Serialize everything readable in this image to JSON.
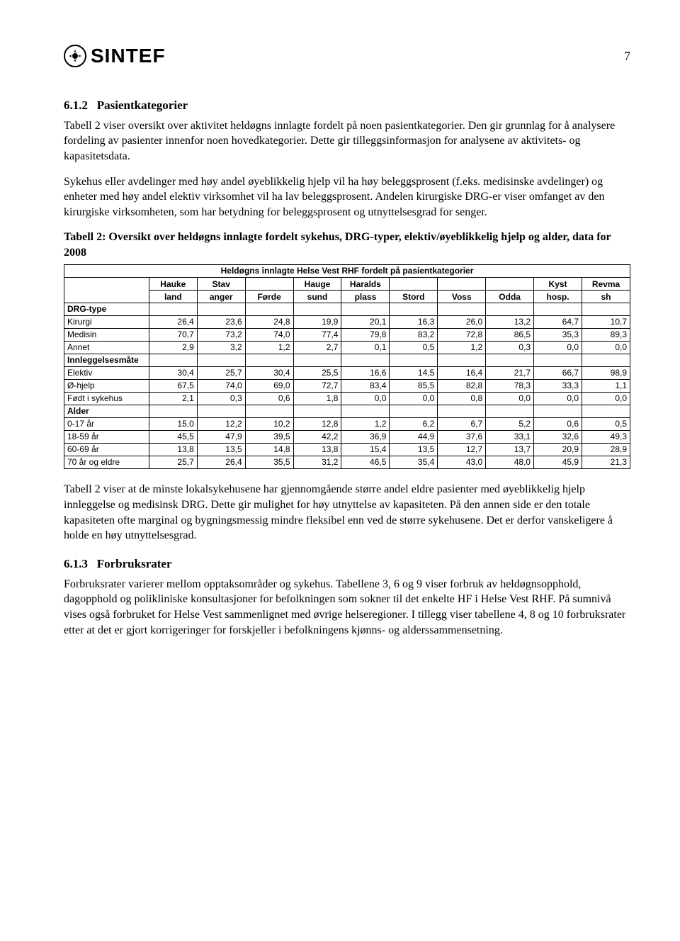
{
  "page": {
    "brand": "SINTEF",
    "logo_glyph": "❂",
    "page_number": "7"
  },
  "section1": {
    "number": "6.1.2",
    "title": "Pasientkategorier",
    "para1": "Tabell 2 viser oversikt over aktivitet heldøgns innlagte fordelt på noen pasientkategorier. Den gir grunnlag for å analysere fordeling av pasienter innenfor noen hovedkategorier. Dette gir tilleggsinformasjon for analysene av aktivitets- og kapasitetsdata.",
    "para2": "Sykehus eller avdelinger med høy andel øyeblikkelig hjelp vil ha høy beleggsprosent (f.eks. medisinske avdelinger) og enheter med høy andel elektiv virksomhet vil ha lav beleggsprosent. Andelen kirurgiske DRG-er viser omfanget av den kirurgiske virksomheten, som har betydning for beleggsprosent og utnyttelsesgrad for senger.",
    "table_caption": "Tabell 2: Oversikt over heldøgns innlagte fordelt sykehus, DRG-typer, elektiv/øyeblikkelig hjelp og alder, data for 2008"
  },
  "table2": {
    "supertitle": "Heldøgns innlagte Helse Vest RHF fordelt på pasientkategorier",
    "columns": [
      {
        "l1": "Hauke",
        "l2": "land"
      },
      {
        "l1": "Stav",
        "l2": "anger"
      },
      {
        "l1": "",
        "l2": "Førde"
      },
      {
        "l1": "Hauge",
        "l2": "sund"
      },
      {
        "l1": "Haralds",
        "l2": "plass"
      },
      {
        "l1": "",
        "l2": "Stord"
      },
      {
        "l1": "",
        "l2": "Voss"
      },
      {
        "l1": "",
        "l2": "Odda"
      },
      {
        "l1": "Kyst",
        "l2": "hosp."
      },
      {
        "l1": "Revma",
        "l2": "sh"
      }
    ],
    "groups": [
      {
        "name": "DRG-type",
        "rows": [
          {
            "label": "Kirurgi",
            "v": [
              "26,4",
              "23,6",
              "24,8",
              "19,9",
              "20,1",
              "16,3",
              "26,0",
              "13,2",
              "64,7",
              "10,7"
            ]
          },
          {
            "label": "Medisin",
            "v": [
              "70,7",
              "73,2",
              "74,0",
              "77,4",
              "79,8",
              "83,2",
              "72,8",
              "86,5",
              "35,3",
              "89,3"
            ]
          },
          {
            "label": "Annet",
            "v": [
              "2,9",
              "3,2",
              "1,2",
              "2,7",
              "0,1",
              "0,5",
              "1,2",
              "0,3",
              "0,0",
              "0,0"
            ]
          }
        ]
      },
      {
        "name": "Innleggelsesmåte",
        "rows": [
          {
            "label": "Elektiv",
            "v": [
              "30,4",
              "25,7",
              "30,4",
              "25,5",
              "16,6",
              "14,5",
              "16,4",
              "21,7",
              "66,7",
              "98,9"
            ]
          },
          {
            "label": "Ø-hjelp",
            "v": [
              "67,5",
              "74,0",
              "69,0",
              "72,7",
              "83,4",
              "85,5",
              "82,8",
              "78,3",
              "33,3",
              "1,1"
            ]
          },
          {
            "label": "Født i sykehus",
            "v": [
              "2,1",
              "0,3",
              "0,6",
              "1,8",
              "0,0",
              "0,0",
              "0,8",
              "0,0",
              "0,0",
              "0,0"
            ]
          }
        ]
      },
      {
        "name": "Alder",
        "rows": [
          {
            "label": "0-17 år",
            "v": [
              "15,0",
              "12,2",
              "10,2",
              "12,8",
              "1,2",
              "6,2",
              "6,7",
              "5,2",
              "0,6",
              "0,5"
            ]
          },
          {
            "label": "18-59 år",
            "v": [
              "45,5",
              "47,9",
              "39,5",
              "42,2",
              "36,9",
              "44,9",
              "37,6",
              "33,1",
              "32,6",
              "49,3"
            ]
          },
          {
            "label": "60-69 år",
            "v": [
              "13,8",
              "13,5",
              "14,8",
              "13,8",
              "15,4",
              "13,5",
              "12,7",
              "13,7",
              "20,9",
              "28,9"
            ]
          },
          {
            "label": "70 år og eldre",
            "v": [
              "25,7",
              "26,4",
              "35,5",
              "31,2",
              "46,5",
              "35,4",
              "43,0",
              "48,0",
              "45,9",
              "21,3"
            ]
          }
        ]
      }
    ]
  },
  "section1b": {
    "para3": "Tabell 2 viser at de minste lokalsykehusene har gjennomgående større andel eldre pasienter med øyeblikkelig hjelp innleggelse og medisinsk DRG. Dette gir mulighet for høy utnyttelse av kapasiteten. På den annen side er den totale kapasiteten ofte marginal og bygningsmessig mindre fleksibel enn ved de større sykehusene. Det er derfor vanskeligere å holde en høy utnyttelsesgrad."
  },
  "section2": {
    "number": "6.1.3",
    "title": "Forbruksrater",
    "para1": "Forbruksrater varierer mellom opptaksområder og sykehus. Tabellene 3, 6 og 9 viser forbruk av heldøgnsopphold, dagopphold og polikliniske konsultasjoner for befolkningen som sokner til det enkelte HF i Helse Vest RHF. På sumnivå vises også forbruket for Helse Vest sammenlignet med øvrige helseregioner. I tillegg viser tabellene 4, 8 og 10 forbruksrater etter at det er gjort korrigeringer for forskjeller i befolkningens kjønns- og alderssammensetning."
  }
}
